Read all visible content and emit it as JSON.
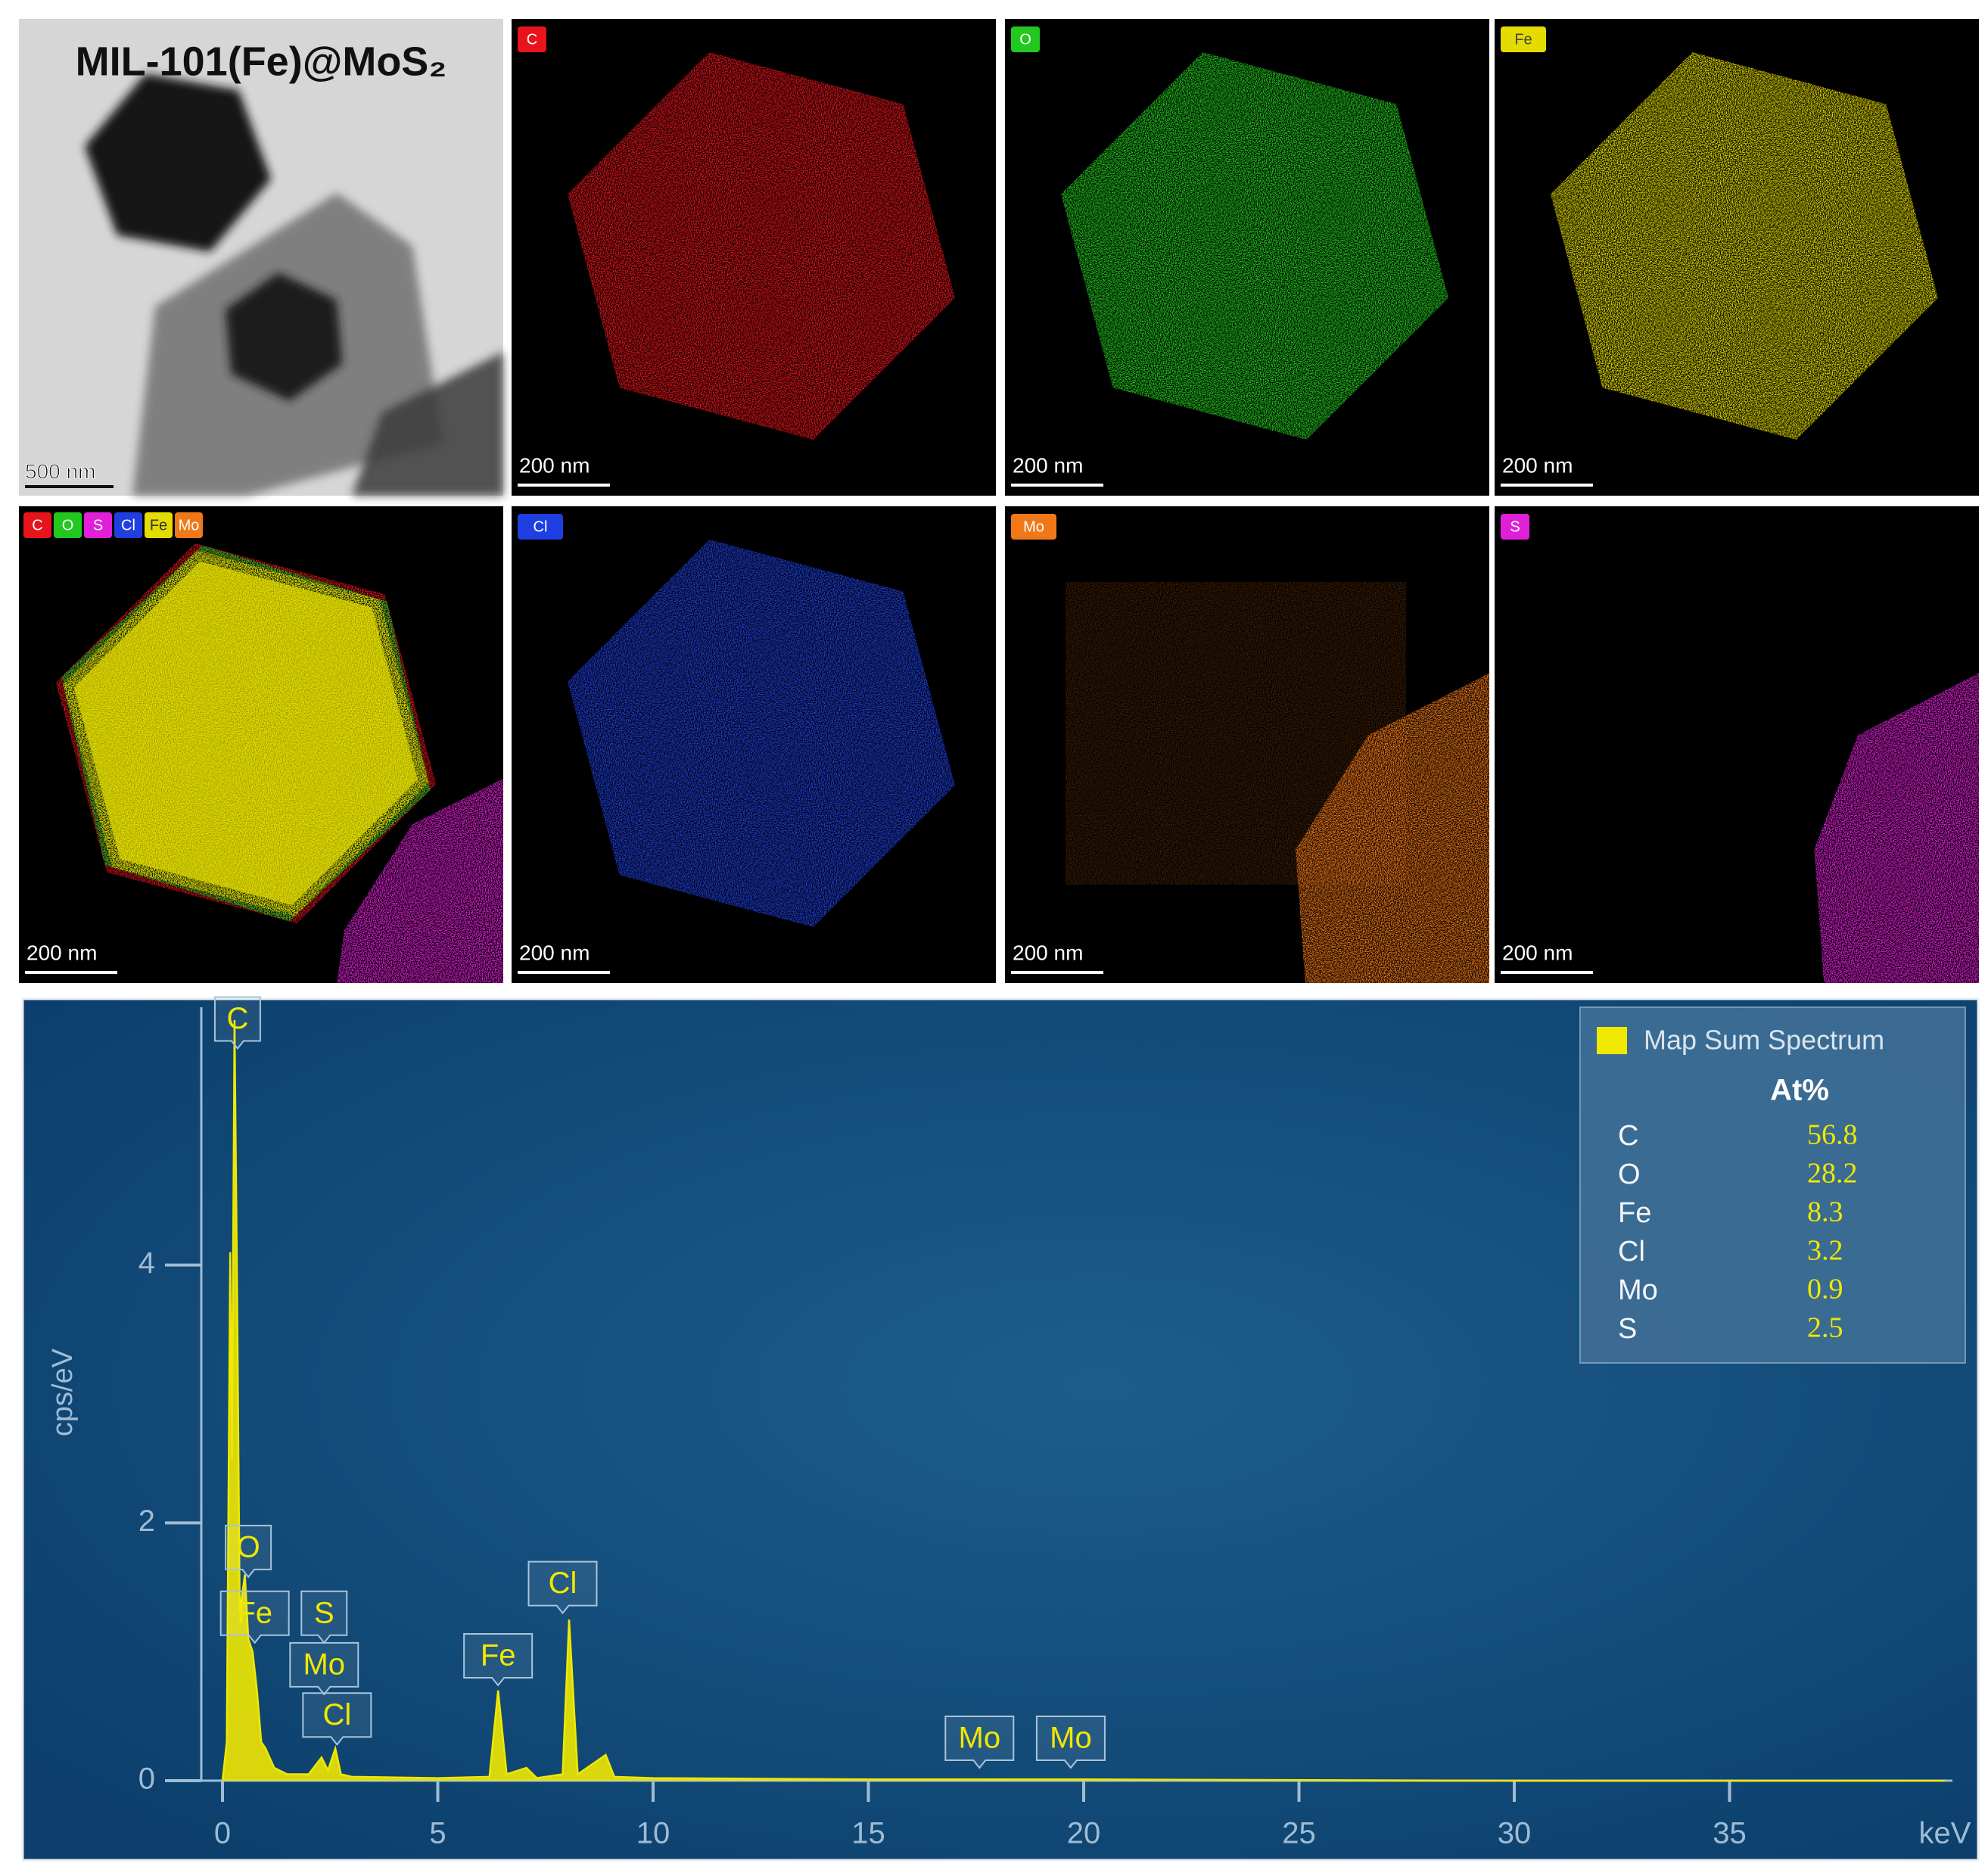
{
  "panels": [
    {
      "title": "MIL-101(Fe)@MoS₂",
      "scale_bar": "500 nm"
    },
    {
      "tag": "C",
      "color": "#e8141b",
      "scale_bar": "200 nm"
    },
    {
      "tag": "O",
      "color": "#22c81e",
      "scale_bar": "200 nm"
    },
    {
      "tag": "Fe",
      "color": "#e4dc00",
      "scale_bar": "200 nm"
    },
    {
      "tags": [
        {
          "text": "C",
          "color": "#e8141b"
        },
        {
          "text": "O",
          "color": "#22c81e"
        },
        {
          "text": "S",
          "color": "#e020d8"
        },
        {
          "text": "Cl",
          "color": "#1f3fe0"
        },
        {
          "text": "Fe",
          "color": "#e4dc00"
        },
        {
          "text": "Mo",
          "color": "#f07818"
        }
      ],
      "scale_bar": "200 nm"
    },
    {
      "tag": "Cl",
      "color": "#1f3fe0",
      "scale_bar": "200 nm"
    },
    {
      "tag": "Mo",
      "color": "#f07818",
      "scale_bar": "200 nm"
    },
    {
      "tag": "S",
      "color": "#e020d8",
      "scale_bar": "200 nm"
    }
  ],
  "chart_data": {
    "type": "line",
    "xlabel": "keV",
    "ylabel": "cps/eV",
    "x": [
      0,
      0.1,
      0.18,
      0.22,
      0.28,
      0.34,
      0.4,
      0.52,
      0.6,
      0.7,
      0.8,
      0.9,
      1.0,
      1.2,
      1.5,
      2.0,
      2.3,
      2.45,
      2.62,
      2.75,
      3.0,
      5.0,
      6.2,
      6.4,
      6.6,
      7.06,
      7.3,
      7.9,
      8.05,
      8.25,
      8.9,
      9.1,
      10,
      15,
      20,
      30,
      40
    ],
    "series": [
      {
        "name": "Map Sum Spectrum",
        "color": "#f0e800",
        "values": [
          0,
          0.3,
          4.1,
          2.5,
          5.9,
          3.8,
          1.3,
          1.6,
          1.1,
          1.0,
          0.7,
          0.3,
          0.25,
          0.1,
          0.05,
          0.05,
          0.18,
          0.08,
          0.25,
          0.05,
          0.03,
          0.02,
          0.03,
          0.7,
          0.05,
          0.1,
          0.02,
          0.05,
          1.25,
          0.05,
          0.2,
          0.03,
          0.02,
          0.01,
          0.01,
          0,
          0
        ]
      }
    ],
    "xlim": [
      0,
      40
    ],
    "ylim": [
      0,
      6
    ],
    "xticks": [
      0,
      5,
      10,
      15,
      20,
      25,
      30,
      35
    ],
    "yticks": [
      0,
      2,
      4
    ],
    "peak_labels": [
      {
        "label": "C",
        "x": 0.35,
        "y": 5.68
      },
      {
        "label": "O",
        "x": 0.6,
        "y": 1.58
      },
      {
        "label": "Fe",
        "x": 0.75,
        "y": 1.07
      },
      {
        "label": "S",
        "x": 2.36,
        "y": 1.07
      },
      {
        "label": "Mo",
        "x": 2.36,
        "y": 0.67
      },
      {
        "label": "Cl",
        "x": 2.66,
        "y": 0.28
      },
      {
        "label": "Fe",
        "x": 6.4,
        "y": 0.74
      },
      {
        "label": "Cl",
        "x": 7.9,
        "y": 1.3
      },
      {
        "label": "Mo",
        "x": 17.58,
        "y": 0.1
      },
      {
        "label": "Mo",
        "x": 19.7,
        "y": 0.1
      }
    ],
    "legend": {
      "title": "Map Sum Spectrum",
      "header": "At%",
      "rows": [
        {
          "element": "C",
          "value": 56.8
        },
        {
          "element": "O",
          "value": 28.2
        },
        {
          "element": "Fe",
          "value": 8.3
        },
        {
          "element": "Cl",
          "value": 3.2
        },
        {
          "element": "Mo",
          "value": 0.9
        },
        {
          "element": "S",
          "value": 2.5
        }
      ]
    }
  }
}
